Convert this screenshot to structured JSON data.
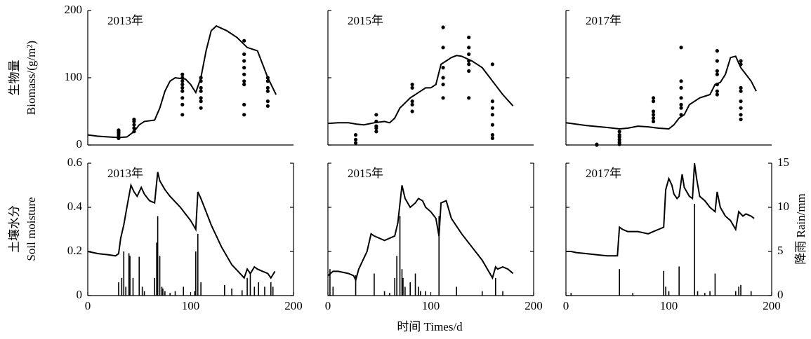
{
  "chart_data": [
    {
      "type": "line",
      "title": "2013年",
      "ylabel_cn": "生物量",
      "ylabel": "Biomass/(g/m²)",
      "xlim": [
        0,
        200
      ],
      "ylim": [
        0,
        200
      ],
      "yticks": [
        0,
        100,
        200
      ],
      "ytick_labels": true,
      "series": [
        {
          "type": "line",
          "color": "#000000",
          "x": [
            0,
            10,
            20,
            30,
            38,
            45,
            50,
            55,
            65,
            70,
            75,
            80,
            85,
            95,
            100,
            105,
            110,
            115,
            120,
            125,
            135,
            145,
            155,
            165,
            175,
            183
          ],
          "values": [
            15,
            13,
            12,
            11,
            12,
            20,
            30,
            35,
            37,
            55,
            80,
            95,
            100,
            98,
            90,
            78,
            100,
            140,
            170,
            177,
            170,
            160,
            145,
            140,
            100,
            75
          ]
        },
        {
          "type": "scatter",
          "color": "#000000",
          "x": [
            30,
            30,
            30,
            30,
            30,
            30,
            45,
            45,
            45,
            45,
            45,
            92,
            92,
            92,
            92,
            92,
            92,
            92,
            92,
            92,
            110,
            110,
            110,
            110,
            110,
            110,
            110,
            152,
            152,
            152,
            152,
            152,
            152,
            152,
            152,
            152,
            175,
            175,
            175,
            175,
            175,
            175
          ],
          "values": [
            10,
            12,
            15,
            18,
            20,
            22,
            20,
            25,
            30,
            35,
            38,
            45,
            60,
            70,
            80,
            85,
            90,
            95,
            100,
            105,
            55,
            65,
            70,
            80,
            85,
            95,
            100,
            45,
            60,
            90,
            95,
            105,
            115,
            125,
            135,
            155,
            58,
            65,
            80,
            85,
            95,
            100
          ]
        }
      ]
    },
    {
      "type": "line",
      "title": "2015年",
      "xlim": [
        0,
        200
      ],
      "ylim": [
        0,
        200
      ],
      "yticks": [
        0,
        100,
        200
      ],
      "ytick_labels": false,
      "series": [
        {
          "type": "line",
          "color": "#000000",
          "x": [
            0,
            10,
            20,
            28,
            35,
            45,
            55,
            60,
            65,
            70,
            80,
            90,
            95,
            100,
            105,
            110,
            115,
            120,
            125,
            130,
            140,
            150,
            160,
            170,
            180
          ],
          "values": [
            32,
            33,
            33,
            31,
            30,
            33,
            35,
            33,
            40,
            55,
            70,
            80,
            85,
            85,
            90,
            120,
            125,
            130,
            133,
            132,
            125,
            115,
            95,
            75,
            58
          ]
        },
        {
          "type": "scatter",
          "color": "#000000",
          "x": [
            27,
            27,
            27,
            47,
            47,
            47,
            47,
            47,
            82,
            82,
            82,
            82,
            82,
            112,
            112,
            112,
            112,
            112,
            112,
            137,
            137,
            137,
            137,
            137,
            137,
            137,
            160,
            160,
            160,
            160,
            160,
            160,
            160
          ],
          "values": [
            3,
            8,
            15,
            20,
            25,
            28,
            35,
            45,
            50,
            60,
            65,
            85,
            90,
            70,
            90,
            100,
            115,
            145,
            175,
            70,
            110,
            120,
            125,
            135,
            145,
            160,
            10,
            15,
            30,
            45,
            55,
            65,
            120
          ]
        }
      ]
    },
    {
      "type": "line",
      "title": "2017年",
      "xlim": [
        0,
        200
      ],
      "ylim": [
        0,
        200
      ],
      "yticks": [
        0,
        100,
        200
      ],
      "ytick_labels": false,
      "series": [
        {
          "type": "line",
          "color": "#000000",
          "x": [
            0,
            20,
            40,
            52,
            60,
            70,
            80,
            90,
            100,
            105,
            110,
            115,
            120,
            130,
            140,
            145,
            150,
            155,
            160,
            165,
            170,
            180,
            185
          ],
          "values": [
            33,
            29,
            26,
            24,
            25,
            28,
            27,
            25,
            24,
            30,
            40,
            45,
            60,
            70,
            75,
            90,
            93,
            105,
            130,
            132,
            115,
            95,
            80
          ]
        },
        {
          "type": "scatter",
          "color": "#000000",
          "x": [
            30,
            30,
            52,
            52,
            52,
            52,
            52,
            52,
            85,
            85,
            85,
            85,
            85,
            85,
            112,
            112,
            112,
            112,
            112,
            112,
            112,
            147,
            147,
            147,
            147,
            147,
            147,
            147,
            170,
            170,
            170,
            170,
            170,
            170,
            170,
            170
          ],
          "values": [
            0,
            1,
            1,
            4,
            8,
            12,
            15,
            20,
            35,
            40,
            45,
            50,
            65,
            70,
            45,
            55,
            60,
            70,
            85,
            95,
            145,
            75,
            80,
            90,
            105,
            110,
            125,
            140,
            38,
            45,
            55,
            65,
            80,
            85,
            120,
            125
          ]
        }
      ]
    },
    {
      "type": "line",
      "title": "2013年",
      "ylabel_cn": "土壤水分",
      "ylabel": "Soil moisture",
      "xlim": [
        0,
        200
      ],
      "xticks": [
        0,
        100,
        200
      ],
      "ylim": [
        0,
        0.6
      ],
      "yticks": [
        0,
        0.2,
        0.4,
        0.6
      ],
      "ytick_labels": true,
      "y2lim": [
        0,
        15
      ],
      "y2ticks": [
        0,
        5,
        10,
        15
      ],
      "y2tick_labels": false,
      "series": [
        {
          "type": "line",
          "color": "#000000",
          "x": [
            0,
            10,
            20,
            27,
            30,
            32,
            35,
            38,
            42,
            45,
            48,
            52,
            55,
            60,
            65,
            68,
            70,
            75,
            80,
            90,
            100,
            105,
            107,
            110,
            115,
            120,
            130,
            140,
            150,
            152,
            155,
            158,
            162,
            165,
            170,
            175,
            178,
            182
          ],
          "values": [
            0.2,
            0.19,
            0.185,
            0.18,
            0.19,
            0.26,
            0.32,
            0.4,
            0.5,
            0.47,
            0.45,
            0.49,
            0.46,
            0.43,
            0.42,
            0.56,
            0.52,
            0.48,
            0.45,
            0.4,
            0.34,
            0.3,
            0.47,
            0.44,
            0.38,
            0.32,
            0.22,
            0.14,
            0.09,
            0.08,
            0.12,
            0.1,
            0.13,
            0.12,
            0.11,
            0.1,
            0.08,
            0.11
          ]
        },
        {
          "type": "bar",
          "axis": "y2",
          "color": "#000000",
          "x": [
            30,
            33,
            35,
            37,
            40,
            41,
            44,
            50,
            53,
            55,
            65,
            67,
            68,
            70,
            72,
            73,
            75,
            80,
            85,
            93,
            104,
            105,
            107,
            110,
            133,
            140,
            150,
            155,
            158,
            162,
            166,
            172,
            178,
            180
          ],
          "values": [
            1.5,
            2,
            5,
            1,
            4.8,
            4.5,
            2,
            4.4,
            1,
            0.5,
            2,
            6,
            9,
            4.5,
            1,
            0.8,
            0.5,
            0.3,
            0.5,
            1,
            0.5,
            5,
            7,
            1.5,
            1.2,
            0.8,
            0.6,
            2,
            2.5,
            1,
            1.5,
            1,
            1.5,
            1
          ]
        }
      ]
    },
    {
      "type": "line",
      "title": "2015年",
      "xlabel": "时间 Times/d",
      "xlim": [
        0,
        200
      ],
      "xticks": [
        0,
        100,
        200
      ],
      "ylim": [
        0,
        0.6
      ],
      "yticks": [
        0,
        0.2,
        0.4,
        0.6
      ],
      "ytick_labels": false,
      "y2lim": [
        0,
        15
      ],
      "y2ticks": [
        0,
        5,
        10,
        15
      ],
      "y2tick_labels": false,
      "series": [
        {
          "type": "line",
          "color": "#000000",
          "x": [
            0,
            5,
            10,
            20,
            25,
            27,
            30,
            38,
            42,
            45,
            55,
            65,
            68,
            72,
            75,
            80,
            85,
            88,
            92,
            95,
            100,
            105,
            108,
            110,
            115,
            120,
            130,
            140,
            150,
            155,
            160,
            163,
            165,
            170,
            175,
            180
          ],
          "values": [
            0.09,
            0.11,
            0.11,
            0.1,
            0.09,
            0.07,
            0.12,
            0.2,
            0.28,
            0.27,
            0.25,
            0.27,
            0.33,
            0.5,
            0.44,
            0.4,
            0.42,
            0.44,
            0.43,
            0.4,
            0.38,
            0.35,
            0.27,
            0.42,
            0.43,
            0.35,
            0.28,
            0.22,
            0.16,
            0.12,
            0.08,
            0.13,
            0.12,
            0.13,
            0.12,
            0.1
          ]
        },
        {
          "type": "bar",
          "axis": "y2",
          "color": "#000000",
          "x": [
            2,
            5,
            27,
            45,
            55,
            60,
            65,
            67,
            70,
            72,
            73,
            75,
            80,
            85,
            88,
            90,
            95,
            108,
            125,
            150,
            163,
            170
          ],
          "values": [
            3,
            1,
            2.3,
            2.5,
            0.5,
            0.3,
            2,
            4.5,
            9,
            3,
            2,
            1,
            1.5,
            2.5,
            1,
            0.5,
            0.5,
            9,
            1,
            0.5,
            2,
            0.5
          ]
        }
      ]
    },
    {
      "type": "line",
      "title": "2017年",
      "y2label": "降雨 Rain/mm",
      "xlim": [
        0,
        200
      ],
      "xticks": [
        0,
        100,
        200
      ],
      "ylim": [
        0,
        0.6
      ],
      "yticks": [
        0,
        0.2,
        0.4,
        0.6
      ],
      "ytick_labels": false,
      "y2lim": [
        0,
        15
      ],
      "y2ticks": [
        0,
        5,
        10,
        15
      ],
      "y2tick_labels": true,
      "series": [
        {
          "type": "line",
          "color": "#000000",
          "x": [
            0,
            5,
            10,
            20,
            30,
            40,
            50,
            52,
            55,
            60,
            70,
            80,
            85,
            90,
            95,
            97,
            100,
            103,
            105,
            108,
            110,
            113,
            115,
            120,
            123,
            125,
            127,
            130,
            135,
            140,
            145,
            147,
            150,
            155,
            160,
            165,
            168,
            172,
            175,
            180,
            183
          ],
          "values": [
            0.2,
            0.2,
            0.195,
            0.19,
            0.185,
            0.18,
            0.18,
            0.31,
            0.3,
            0.29,
            0.29,
            0.28,
            0.29,
            0.3,
            0.31,
            0.48,
            0.53,
            0.5,
            0.46,
            0.44,
            0.45,
            0.55,
            0.49,
            0.45,
            0.44,
            0.6,
            0.53,
            0.45,
            0.43,
            0.4,
            0.38,
            0.47,
            0.4,
            0.36,
            0.34,
            0.3,
            0.38,
            0.36,
            0.37,
            0.36,
            0.35
          ]
        },
        {
          "type": "bar",
          "axis": "y2",
          "color": "#000000",
          "x": [
            5,
            52,
            65,
            95,
            97,
            100,
            110,
            125,
            128,
            135,
            140,
            145,
            165,
            168,
            170,
            180
          ],
          "values": [
            0.3,
            3,
            0.3,
            2.8,
            1,
            0.5,
            3.3,
            10.4,
            0.5,
            0.3,
            0.5,
            2.5,
            0.5,
            1,
            1.2,
            0.5
          ]
        }
      ]
    }
  ]
}
